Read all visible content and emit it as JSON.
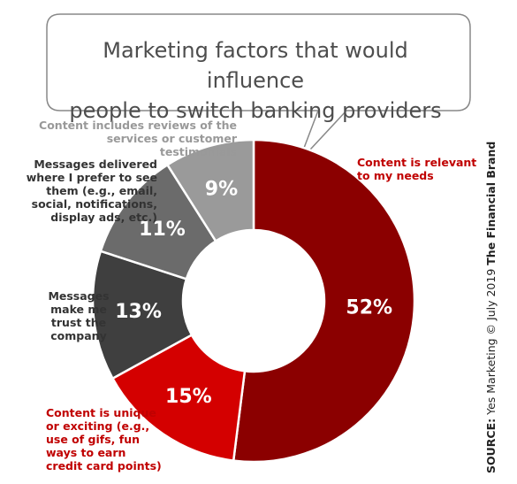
{
  "chart_data": {
    "type": "pie",
    "title": [
      "Marketing factors that would influence",
      "people to switch banking providers"
    ],
    "slices": [
      {
        "label": [
          "Content is relevant",
          "to my needs"
        ],
        "value": 52,
        "display": "52%",
        "color": "#8b0000",
        "label_color": "#c00000"
      },
      {
        "label": [
          "Content is unique",
          "or exciting (e.g.,",
          "use of gifs,  fun",
          "ways to earn",
          "credit card points)"
        ],
        "value": 15,
        "display": "15%",
        "color": "#d40000",
        "label_color": "#c00000"
      },
      {
        "label": [
          "Messages",
          "make me",
          "trust the",
          "company"
        ],
        "value": 13,
        "display": "13%",
        "color": "#3f3f3f",
        "label_color": "#333333"
      },
      {
        "label": [
          "Messages delivered",
          "where I prefer to see",
          "them (e.g., email,",
          "social, notifications,",
          "display ads, etc.)"
        ],
        "value": 11,
        "display": "11%",
        "color": "#6b6b6b",
        "label_color": "#333333"
      },
      {
        "label": [
          "Content includes reviews of the",
          "services or customer testimonials"
        ],
        "value": 9,
        "display": "9%",
        "color": "#9a9a9a",
        "label_color": "#999999"
      }
    ]
  },
  "source": {
    "prefix": "SOURCE:",
    "text": "Yes Marketing © July 2019",
    "brand": "The Financial Brand"
  }
}
